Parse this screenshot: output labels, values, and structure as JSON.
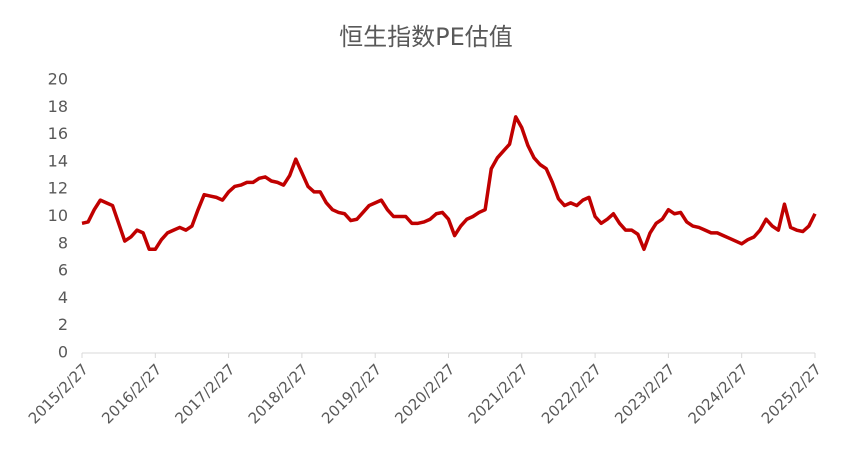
{
  "chart_data": {
    "type": "line",
    "title": "恒生指数PE估值",
    "categories": [
      "2015/2/27",
      null,
      null,
      null,
      null,
      null,
      null,
      null,
      null,
      null,
      null,
      null,
      "2016/2/27",
      null,
      null,
      null,
      null,
      null,
      null,
      null,
      null,
      null,
      null,
      null,
      "2017/2/27",
      null,
      null,
      null,
      null,
      null,
      null,
      null,
      null,
      null,
      null,
      null,
      "2018/2/27",
      null,
      null,
      null,
      null,
      null,
      null,
      null,
      null,
      null,
      null,
      null,
      "2019/2/27",
      null,
      null,
      null,
      null,
      null,
      null,
      null,
      null,
      null,
      null,
      null,
      "2020/2/27",
      null,
      null,
      null,
      null,
      null,
      null,
      null,
      null,
      null,
      null,
      null,
      "2021/2/27",
      null,
      null,
      null,
      null,
      null,
      null,
      null,
      null,
      null,
      null,
      null,
      "2022/2/27",
      null,
      null,
      null,
      null,
      null,
      null,
      null,
      null,
      null,
      null,
      null,
      "2023/2/27",
      null,
      null,
      null,
      null,
      null,
      null,
      null,
      null,
      null,
      null,
      null,
      "2024/2/27",
      null,
      null,
      null,
      null,
      null,
      null,
      null,
      null,
      null,
      null,
      null,
      "2025/2/27"
    ],
    "series": [
      {
        "color": "#c00000",
        "values": [
          9.5,
          9.6,
          10.5,
          11.2,
          11.0,
          10.8,
          9.5,
          8.2,
          8.5,
          9.0,
          8.8,
          7.6,
          7.6,
          8.3,
          8.8,
          9.0,
          9.2,
          9.0,
          9.3,
          10.5,
          11.6,
          11.5,
          11.4,
          11.2,
          11.8,
          12.2,
          12.3,
          12.5,
          12.5,
          12.8,
          12.9,
          12.6,
          12.5,
          12.3,
          13.0,
          14.2,
          13.2,
          12.2,
          11.8,
          11.8,
          11.0,
          10.5,
          10.3,
          10.2,
          9.7,
          9.8,
          10.3,
          10.8,
          11.0,
          11.2,
          10.5,
          10.0,
          10.0,
          10.0,
          9.5,
          9.5,
          9.6,
          9.8,
          10.2,
          10.3,
          9.8,
          8.6,
          9.3,
          9.8,
          10.0,
          10.3,
          10.5,
          13.5,
          14.3,
          14.8,
          15.3,
          17.3,
          16.5,
          15.2,
          14.3,
          13.8,
          13.5,
          12.5,
          11.3,
          10.8,
          11.0,
          10.8,
          11.2,
          11.4,
          10.0,
          9.5,
          9.8,
          10.2,
          9.5,
          9.0,
          9.0,
          8.7,
          7.6,
          8.8,
          9.5,
          9.8,
          10.5,
          10.2,
          10.3,
          9.6,
          9.3,
          9.2,
          9.0,
          8.8,
          8.8,
          8.6,
          8.4,
          8.2,
          8.0,
          8.3,
          8.5,
          9.0,
          9.8,
          9.3,
          9.0,
          10.9,
          9.2,
          9.0,
          8.9,
          9.3,
          10.2
        ]
      }
    ],
    "ylim": [
      0,
      20
    ],
    "yticks": [
      0,
      2,
      4,
      6,
      8,
      10,
      12,
      14,
      16,
      18,
      20
    ]
  }
}
